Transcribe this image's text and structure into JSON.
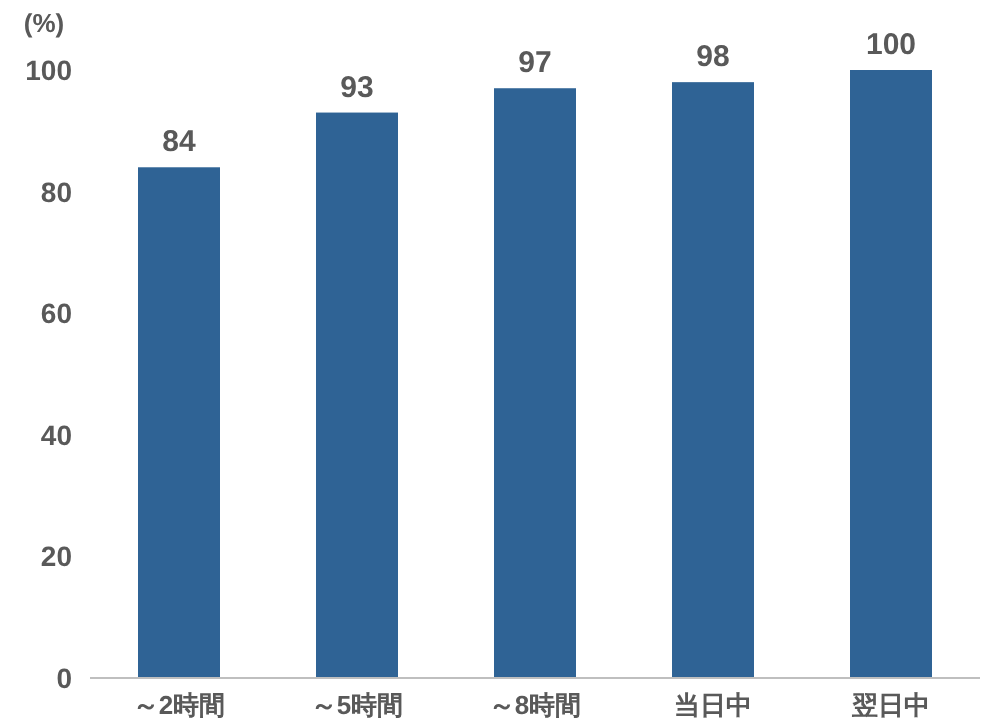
{
  "chart_data": {
    "type": "bar",
    "ylabel": "(%)",
    "categories": [
      "～2時間",
      "～5時間",
      "～8時間",
      "当日中",
      "翌日中"
    ],
    "values": [
      84,
      93,
      97,
      98,
      100
    ],
    "color": "#2f6395",
    "ylim": [
      0,
      100
    ],
    "yticks": [
      0,
      20,
      40,
      60,
      80,
      100
    ],
    "data_labels": true,
    "grid": false
  }
}
